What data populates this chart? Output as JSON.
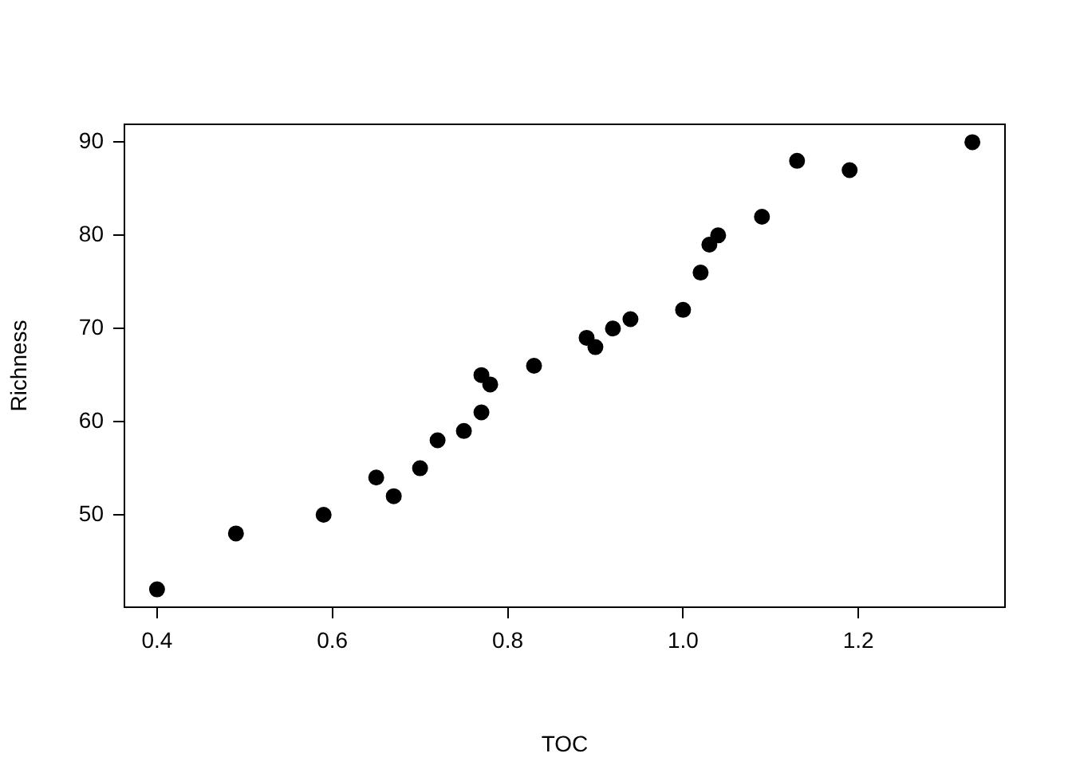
{
  "chart_data": {
    "type": "scatter",
    "xlabel": "TOC",
    "ylabel": "Richness",
    "x": [
      0.4,
      0.49,
      0.59,
      0.65,
      0.67,
      0.7,
      0.72,
      0.75,
      0.77,
      0.77,
      0.78,
      0.83,
      0.89,
      0.9,
      0.92,
      0.94,
      1.0,
      1.02,
      1.03,
      1.04,
      1.09,
      1.13,
      1.19,
      1.33
    ],
    "series": [
      {
        "color": "#000000",
        "values": [
          42,
          48,
          50,
          54,
          52,
          55,
          58,
          59,
          61,
          65,
          64,
          66,
          69,
          68,
          70,
          71,
          72,
          76,
          79,
          80,
          82,
          88,
          87,
          90
        ]
      }
    ],
    "xlim": [
      0.3628,
      1.3672
    ],
    "ylim": [
      40.08,
      91.92
    ],
    "xticks": [
      0.4,
      0.6,
      0.8,
      {
        "value": 1,
        "label": "1.0"
      },
      1.2
    ],
    "yticks": [
      50,
      60,
      70,
      80,
      90
    ],
    "marker": "circle",
    "grid": false,
    "legend": false
  }
}
